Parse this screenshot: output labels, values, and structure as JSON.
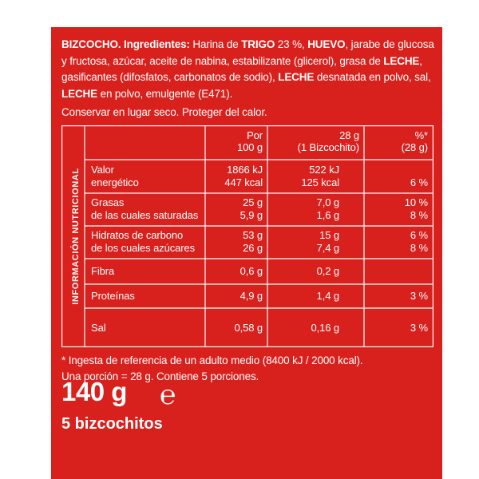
{
  "ingredients": {
    "p1": "BIZCOCHO. Ingredientes:",
    "p2": " Harina de ",
    "p3": "TRIGO",
    "p4": " 23 %, ",
    "p5": "HUEVO",
    "p6": ", jarabe de glucosa y fructosa, azúcar, aceite de nabina, estabilizante (glicerol), grasa de ",
    "p7": "LECHE",
    "p8": ", gasificantes (difosfatos, carbonatos de sodio), ",
    "p9": "LECHE",
    "p10": " desnatada en polvo, sal, ",
    "p11": "LECHE",
    "p12": " en polvo, emulgente (E471)."
  },
  "storage": "Conservar en lugar seco. Proteger del calor.",
  "nutrition": {
    "side_label": "INFORMACIÓN NUTRICIONAL",
    "headers": {
      "per100_1": "Por",
      "per100_2": "100 g",
      "portion_1": "28 g",
      "portion_2": "(1 Bizcochito)",
      "ri_1": "%*",
      "ri_2": "(28 g)"
    },
    "rows": [
      {
        "label1": "Valor",
        "label2": "energético",
        "v100a": "1866 kJ",
        "v100b": "447 kcal",
        "vpa": "522 kJ",
        "vpb": "125 kcal",
        "ria": "",
        "rib": "6 %"
      },
      {
        "label1": "Grasas",
        "label2": "de las cuales saturadas",
        "v100a": "25 g",
        "v100b": "5,9 g",
        "vpa": "7,0 g",
        "vpb": "1,6 g",
        "ria": "10 %",
        "rib": "8 %"
      },
      {
        "label1": "Hidratos de carbono",
        "label2": "de los cuales azúcares",
        "v100a": "53 g",
        "v100b": "26 g",
        "vpa": "15 g",
        "vpb": "7,4 g",
        "ria": "6 %",
        "rib": "8 %"
      },
      {
        "label1": "Fibra",
        "v100a": "0,6 g",
        "vpa": "0,2 g",
        "ria": ""
      },
      {
        "label1": "Proteínas",
        "v100a": "4,9 g",
        "vpa": "1,4 g",
        "ria": "3 %"
      },
      {
        "label1": "Sal",
        "v100a": "0,58 g",
        "vpa": "0,16 g",
        "ria": "3 %"
      }
    ]
  },
  "footnote": {
    "line1": "* Ingesta de referencia de un  adulto medio (8400 kJ / 2000 kcal).",
    "line2": "Una porción = 28 g. Contiene 5 porciones."
  },
  "net_weight": "140 g",
  "estimated_mark": "℮",
  "count": "5 bizcochitos",
  "colors": {
    "background": "#d8201d",
    "text": "#ffffff"
  }
}
